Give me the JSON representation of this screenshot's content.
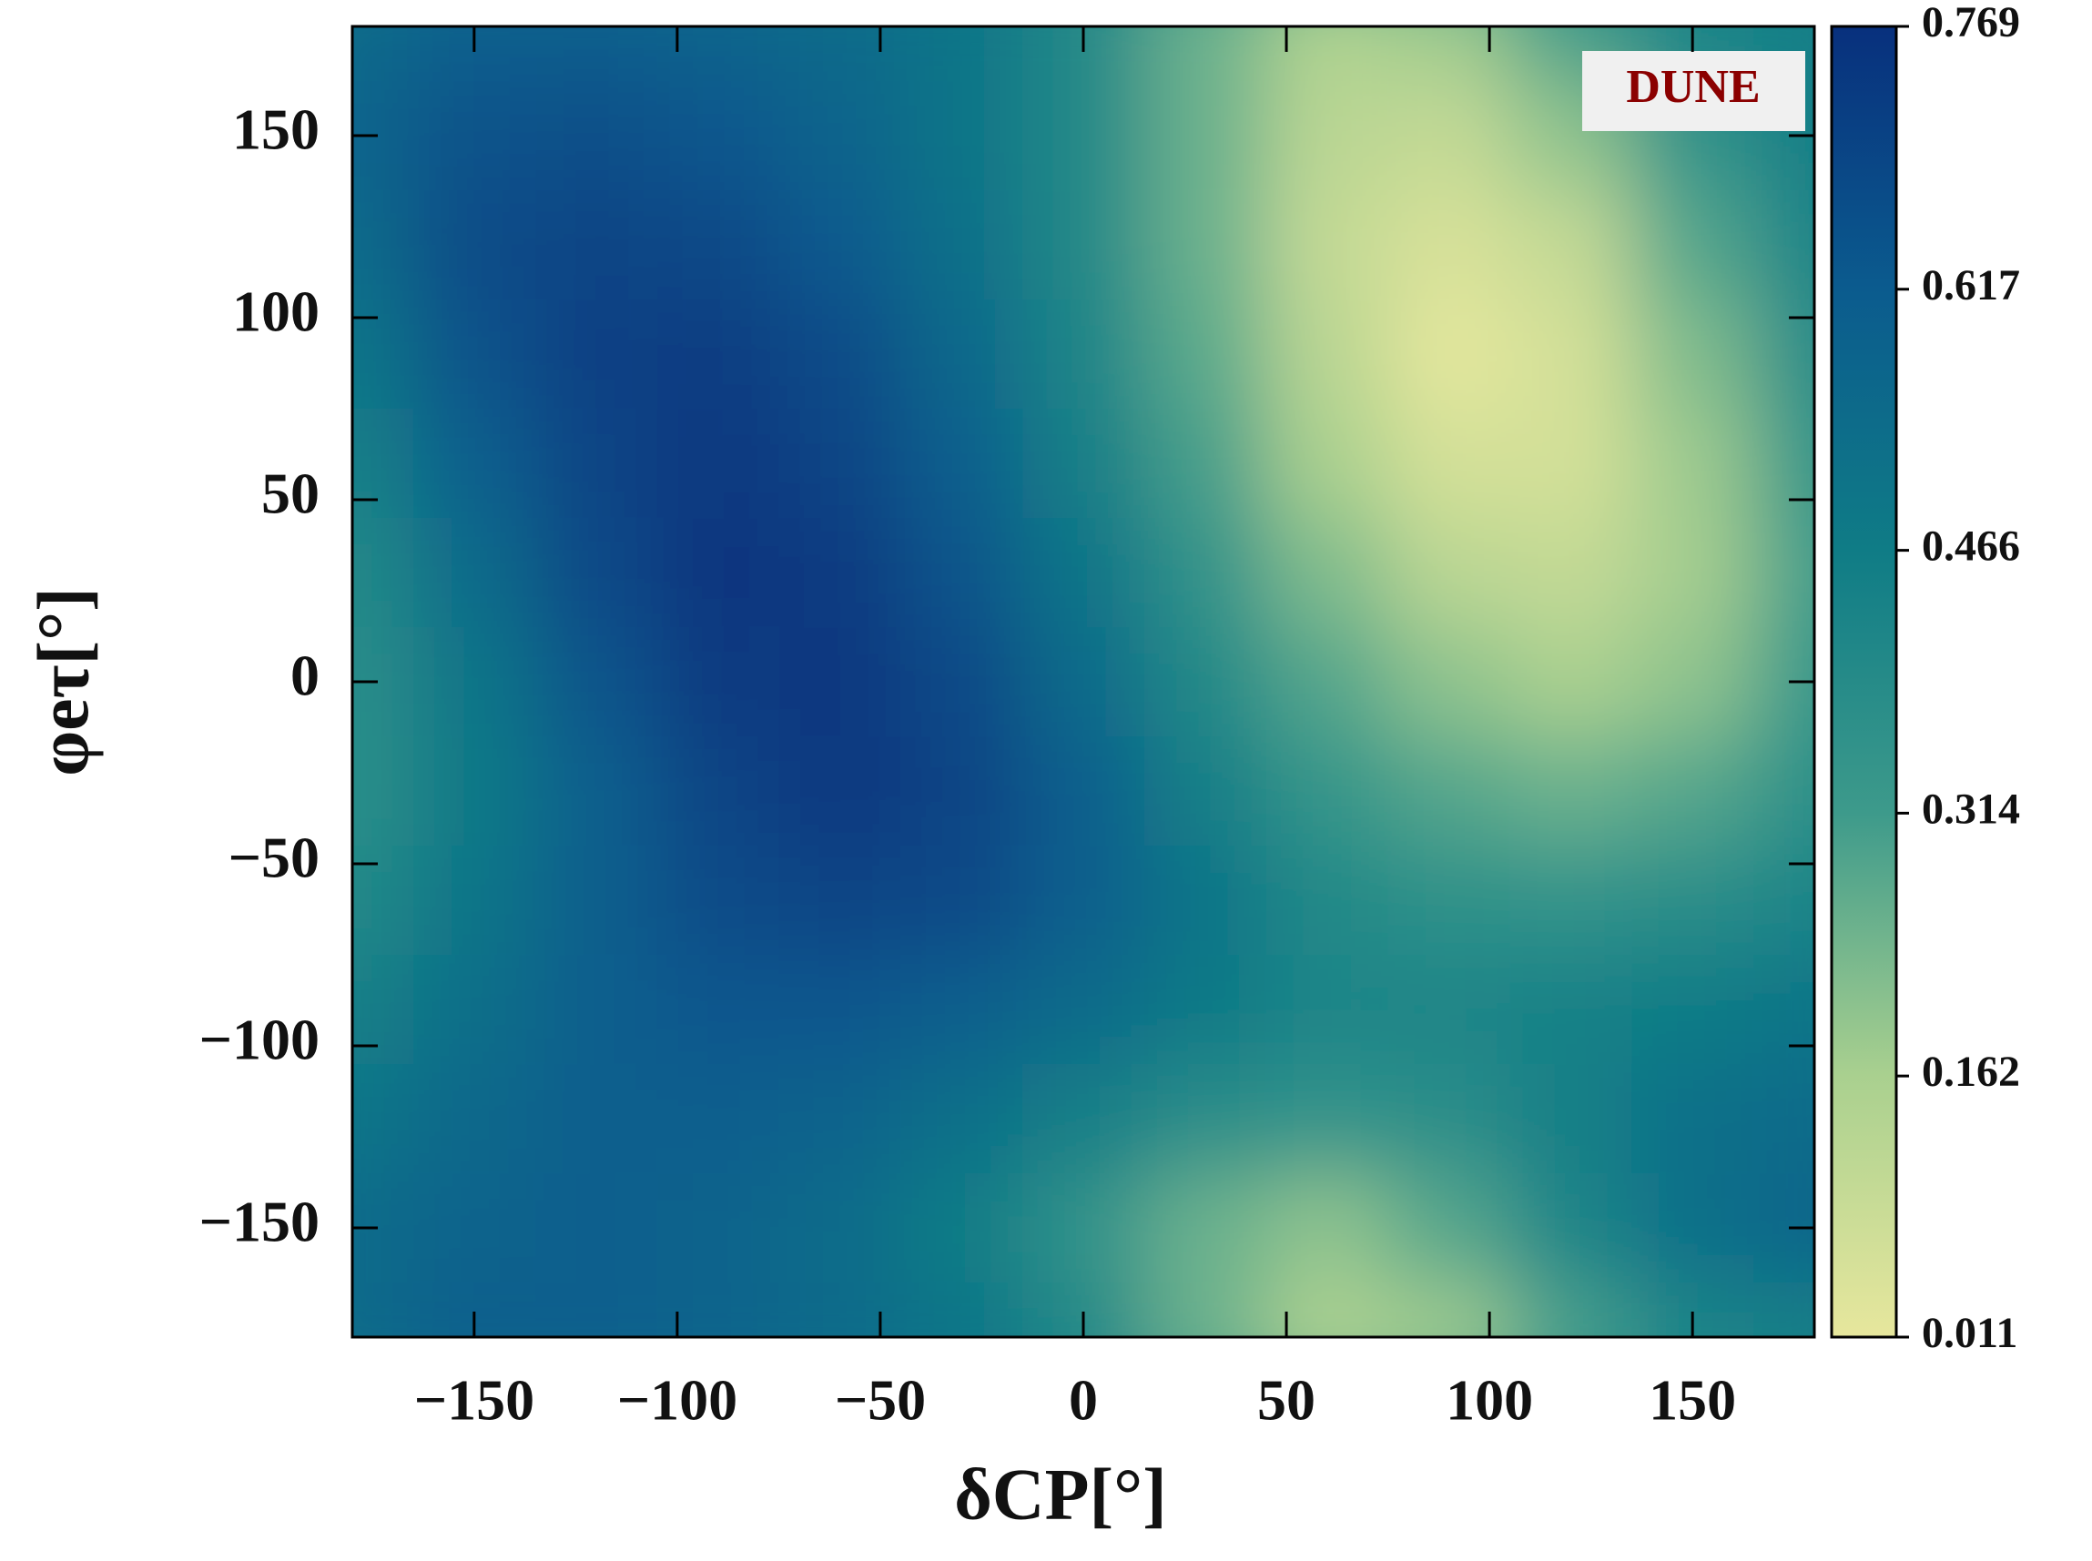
{
  "chart_data": {
    "type": "heatmap",
    "xlabel": "δCP[°]",
    "ylabel": "φeτ[°]",
    "annotation": "DUNE",
    "x": [
      -180,
      -150,
      -120,
      -90,
      -60,
      -30,
      0,
      30,
      60,
      90,
      120,
      150,
      180
    ],
    "y": [
      180,
      150,
      120,
      90,
      60,
      30,
      0,
      -30,
      -60,
      -90,
      -120,
      -150,
      -180
    ],
    "z": [
      [
        0.55,
        0.6,
        0.6,
        0.58,
        0.55,
        0.5,
        0.4,
        0.25,
        0.15,
        0.18,
        0.3,
        0.42,
        0.45
      ],
      [
        0.58,
        0.65,
        0.66,
        0.63,
        0.58,
        0.5,
        0.4,
        0.25,
        0.12,
        0.1,
        0.2,
        0.35,
        0.45
      ],
      [
        0.55,
        0.67,
        0.7,
        0.68,
        0.62,
        0.52,
        0.4,
        0.25,
        0.1,
        0.05,
        0.1,
        0.28,
        0.42
      ],
      [
        0.5,
        0.65,
        0.71,
        0.72,
        0.67,
        0.56,
        0.42,
        0.27,
        0.12,
        0.02,
        0.06,
        0.22,
        0.38
      ],
      [
        0.45,
        0.6,
        0.7,
        0.74,
        0.7,
        0.6,
        0.45,
        0.3,
        0.16,
        0.06,
        0.06,
        0.18,
        0.33
      ],
      [
        0.4,
        0.55,
        0.68,
        0.75,
        0.73,
        0.64,
        0.5,
        0.35,
        0.22,
        0.12,
        0.1,
        0.17,
        0.3
      ],
      [
        0.38,
        0.5,
        0.64,
        0.73,
        0.74,
        0.68,
        0.55,
        0.4,
        0.28,
        0.2,
        0.16,
        0.2,
        0.32
      ],
      [
        0.37,
        0.48,
        0.6,
        0.7,
        0.74,
        0.7,
        0.6,
        0.45,
        0.34,
        0.28,
        0.25,
        0.28,
        0.36
      ],
      [
        0.4,
        0.5,
        0.6,
        0.67,
        0.7,
        0.68,
        0.6,
        0.5,
        0.4,
        0.36,
        0.35,
        0.38,
        0.42
      ],
      [
        0.45,
        0.53,
        0.6,
        0.63,
        0.63,
        0.6,
        0.55,
        0.48,
        0.42,
        0.42,
        0.44,
        0.47,
        0.5
      ],
      [
        0.5,
        0.56,
        0.6,
        0.6,
        0.58,
        0.52,
        0.45,
        0.38,
        0.35,
        0.38,
        0.45,
        0.52,
        0.55
      ],
      [
        0.55,
        0.58,
        0.6,
        0.58,
        0.54,
        0.46,
        0.35,
        0.25,
        0.2,
        0.28,
        0.42,
        0.52,
        0.57
      ],
      [
        0.55,
        0.6,
        0.6,
        0.58,
        0.55,
        0.5,
        0.4,
        0.25,
        0.15,
        0.18,
        0.3,
        0.42,
        0.45
      ]
    ],
    "xlim": [
      -180,
      180
    ],
    "ylim": [
      -180,
      180
    ],
    "xticks": [
      {
        "value": -150,
        "label": "−150"
      },
      {
        "value": -100,
        "label": "−100"
      },
      {
        "value": -50,
        "label": "−50"
      },
      0,
      50,
      100,
      150
    ],
    "yticks": [
      {
        "value": -150,
        "label": "−150"
      },
      {
        "value": -100,
        "label": "−100"
      },
      {
        "value": -50,
        "label": "−50"
      },
      0,
      50,
      100,
      150
    ],
    "zlim": [
      0.011,
      0.769
    ],
    "zticks": [
      0.011,
      0.162,
      0.314,
      0.466,
      0.617,
      0.769
    ],
    "colorscale": [
      "#e7e79d",
      "#a9d08f",
      "#3d9a8b",
      "#0f7c86",
      "#0b5b8e",
      "#08307d"
    ]
  }
}
